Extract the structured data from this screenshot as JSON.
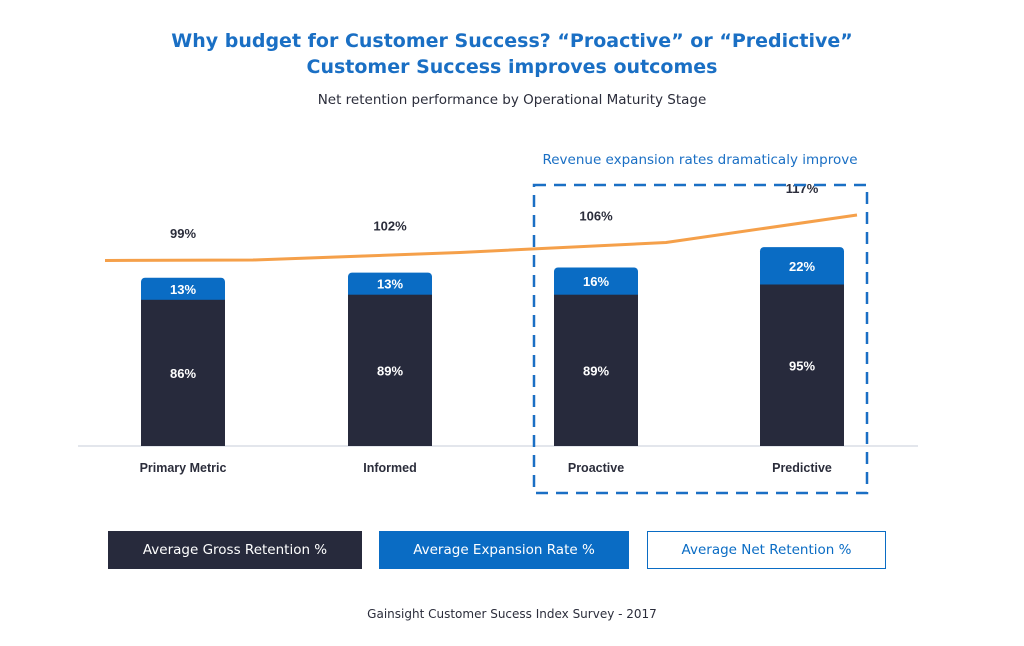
{
  "chart_data": {
    "type": "bar",
    "title": "Why budget for Customer Success? “Proactive” or “Predictive” Customer Success improves outcomes",
    "title_lines": [
      "Why budget for Customer Success? “Proactive” or “Predictive”",
      "Customer Success improves outcomes"
    ],
    "subtitle": "Net retention performance by Operational Maturity Stage",
    "categories": [
      "Primary Metric",
      "Informed",
      "Proactive",
      "Predictive"
    ],
    "stacked": true,
    "series": [
      {
        "name": "Average Gross Retention %",
        "type": "bar",
        "color": "#272a3c",
        "values": [
          86,
          89,
          89,
          95
        ],
        "labels": [
          "86%",
          "89%",
          "89%",
          "95%"
        ]
      },
      {
        "name": "Average Expansion Rate %",
        "type": "bar",
        "color": "#0a6cc4",
        "values": [
          13,
          13,
          16,
          22
        ],
        "labels": [
          "13%",
          "13%",
          "16%",
          "22%"
        ]
      },
      {
        "name": "Average Net Retention %",
        "type": "line",
        "color": "#f5a04a",
        "values": [
          99,
          102,
          106,
          117
        ],
        "labels": [
          "99%",
          "102%",
          "106%",
          "117%"
        ]
      }
    ],
    "annotation": {
      "text": "Revenue expansion rates dramaticaly improve",
      "categories": [
        "Proactive",
        "Predictive"
      ]
    },
    "legend_position": "bottom",
    "grid": false,
    "source": "Gainsight Customer Sucess Index Survey - 2017"
  }
}
